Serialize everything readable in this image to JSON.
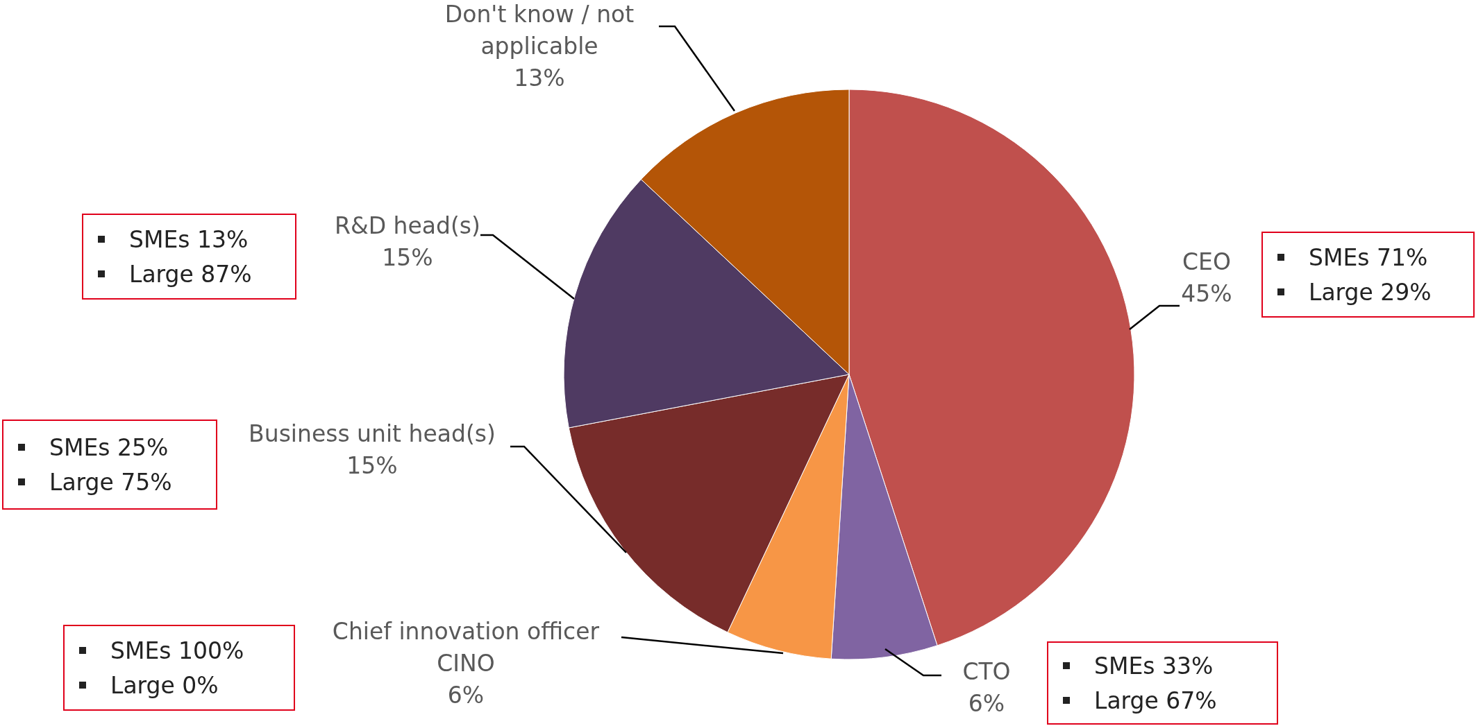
{
  "chart_data": {
    "type": "pie",
    "categories": [
      "CEO",
      "CTO",
      "Chief innovation officer CINO",
      "Business unit head(s)",
      "R&D head(s)",
      "Don't know / not applicable"
    ],
    "values": [
      45,
      6,
      6,
      15,
      15,
      13
    ],
    "value_labels": [
      "45%",
      "6%",
      "6%",
      "15%",
      "15%",
      "13%"
    ],
    "colors": [
      "#c0504d",
      "#8064a2",
      "#f79646",
      "#772c2a",
      "#4f3a62",
      "#b45507"
    ],
    "annotations": [
      [
        "SMEs 71%",
        "Large 29%"
      ],
      [
        "SMEs 33%",
        "Large 67%"
      ],
      [
        "SMEs 100%",
        "Large 0%"
      ],
      [
        "SMEs 25%",
        "Large 75%"
      ],
      [
        "SMEs 13%",
        "Large 87%"
      ]
    ]
  }
}
